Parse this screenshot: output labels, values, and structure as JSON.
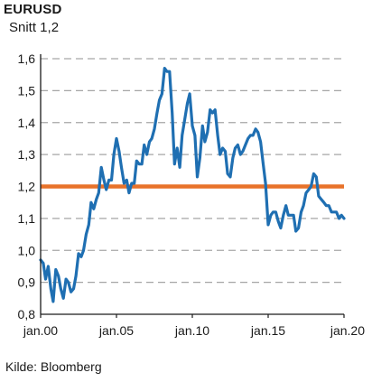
{
  "chart_data": {
    "type": "line",
    "title": "EURUSD",
    "subtitle": "Snitt 1,2",
    "source": "Kilde: Bloomberg",
    "xlabel": "",
    "ylabel": "",
    "x_range": [
      2000.0,
      2020.0
    ],
    "ylim": [
      0.8,
      1.6
    ],
    "y_ticks": [
      {
        "value": 1.6,
        "label": "1,6"
      },
      {
        "value": 1.5,
        "label": "1,5"
      },
      {
        "value": 1.4,
        "label": "1,4"
      },
      {
        "value": 1.3,
        "label": "1,3"
      },
      {
        "value": 1.2,
        "label": "1,2"
      },
      {
        "value": 1.1,
        "label": "1,1"
      },
      {
        "value": 1.0,
        "label": "1,0"
      },
      {
        "value": 0.9,
        "label": "0,9"
      },
      {
        "value": 0.8,
        "label": "0,8"
      }
    ],
    "x_ticks": [
      {
        "value": 2000,
        "label": "jan.00"
      },
      {
        "value": 2005,
        "label": "jan.05"
      },
      {
        "value": 2010,
        "label": "jan.10"
      },
      {
        "value": 2015,
        "label": "jan.15"
      },
      {
        "value": 2020,
        "label": "jan.20"
      }
    ],
    "grid": "horizontal-dashed",
    "series": [
      {
        "color": "#1f6fb2",
        "points": [
          [
            2000.0,
            0.97
          ],
          [
            2000.17,
            0.96
          ],
          [
            2000.33,
            0.91
          ],
          [
            2000.5,
            0.95
          ],
          [
            2000.67,
            0.88
          ],
          [
            2000.83,
            0.84
          ],
          [
            2001.0,
            0.94
          ],
          [
            2001.17,
            0.92
          ],
          [
            2001.33,
            0.88
          ],
          [
            2001.5,
            0.85
          ],
          [
            2001.67,
            0.91
          ],
          [
            2001.83,
            0.9
          ],
          [
            2002.0,
            0.87
          ],
          [
            2002.17,
            0.88
          ],
          [
            2002.33,
            0.92
          ],
          [
            2002.5,
            0.99
          ],
          [
            2002.67,
            0.98
          ],
          [
            2002.83,
            1.0
          ],
          [
            2003.0,
            1.05
          ],
          [
            2003.17,
            1.08
          ],
          [
            2003.33,
            1.15
          ],
          [
            2003.5,
            1.13
          ],
          [
            2003.67,
            1.16
          ],
          [
            2003.83,
            1.18
          ],
          [
            2004.0,
            1.26
          ],
          [
            2004.17,
            1.22
          ],
          [
            2004.33,
            1.19
          ],
          [
            2004.5,
            1.22
          ],
          [
            2004.67,
            1.22
          ],
          [
            2004.83,
            1.3
          ],
          [
            2005.0,
            1.35
          ],
          [
            2005.17,
            1.31
          ],
          [
            2005.33,
            1.26
          ],
          [
            2005.5,
            1.21
          ],
          [
            2005.67,
            1.22
          ],
          [
            2005.83,
            1.18
          ],
          [
            2006.0,
            1.21
          ],
          [
            2006.17,
            1.21
          ],
          [
            2006.33,
            1.28
          ],
          [
            2006.5,
            1.27
          ],
          [
            2006.67,
            1.27
          ],
          [
            2006.83,
            1.33
          ],
          [
            2007.0,
            1.3
          ],
          [
            2007.17,
            1.34
          ],
          [
            2007.33,
            1.35
          ],
          [
            2007.5,
            1.38
          ],
          [
            2007.67,
            1.43
          ],
          [
            2007.83,
            1.47
          ],
          [
            2008.0,
            1.49
          ],
          [
            2008.17,
            1.57
          ],
          [
            2008.33,
            1.56
          ],
          [
            2008.5,
            1.56
          ],
          [
            2008.67,
            1.43
          ],
          [
            2008.83,
            1.27
          ],
          [
            2009.0,
            1.32
          ],
          [
            2009.17,
            1.26
          ],
          [
            2009.33,
            1.36
          ],
          [
            2009.5,
            1.41
          ],
          [
            2009.67,
            1.46
          ],
          [
            2009.83,
            1.49
          ],
          [
            2010.0,
            1.39
          ],
          [
            2010.17,
            1.36
          ],
          [
            2010.33,
            1.23
          ],
          [
            2010.5,
            1.29
          ],
          [
            2010.67,
            1.39
          ],
          [
            2010.83,
            1.34
          ],
          [
            2011.0,
            1.37
          ],
          [
            2011.17,
            1.44
          ],
          [
            2011.33,
            1.43
          ],
          [
            2011.5,
            1.44
          ],
          [
            2011.67,
            1.36
          ],
          [
            2011.83,
            1.3
          ],
          [
            2012.0,
            1.32
          ],
          [
            2012.17,
            1.31
          ],
          [
            2012.33,
            1.24
          ],
          [
            2012.5,
            1.23
          ],
          [
            2012.67,
            1.29
          ],
          [
            2012.83,
            1.32
          ],
          [
            2013.0,
            1.33
          ],
          [
            2013.17,
            1.3
          ],
          [
            2013.33,
            1.31
          ],
          [
            2013.5,
            1.33
          ],
          [
            2013.67,
            1.35
          ],
          [
            2013.83,
            1.36
          ],
          [
            2014.0,
            1.36
          ],
          [
            2014.17,
            1.38
          ],
          [
            2014.33,
            1.37
          ],
          [
            2014.5,
            1.34
          ],
          [
            2014.67,
            1.27
          ],
          [
            2014.83,
            1.21
          ],
          [
            2015.0,
            1.08
          ],
          [
            2015.17,
            1.11
          ],
          [
            2015.33,
            1.12
          ],
          [
            2015.5,
            1.12
          ],
          [
            2015.67,
            1.09
          ],
          [
            2015.83,
            1.07
          ],
          [
            2016.0,
            1.11
          ],
          [
            2016.17,
            1.14
          ],
          [
            2016.33,
            1.11
          ],
          [
            2016.5,
            1.11
          ],
          [
            2016.67,
            1.11
          ],
          [
            2016.83,
            1.06
          ],
          [
            2017.0,
            1.07
          ],
          [
            2017.17,
            1.12
          ],
          [
            2017.33,
            1.14
          ],
          [
            2017.5,
            1.18
          ],
          [
            2017.67,
            1.19
          ],
          [
            2017.83,
            1.2
          ],
          [
            2018.0,
            1.24
          ],
          [
            2018.17,
            1.23
          ],
          [
            2018.33,
            1.17
          ],
          [
            2018.5,
            1.16
          ],
          [
            2018.67,
            1.15
          ],
          [
            2018.83,
            1.14
          ],
          [
            2019.0,
            1.14
          ],
          [
            2019.17,
            1.12
          ],
          [
            2019.33,
            1.12
          ],
          [
            2019.5,
            1.12
          ],
          [
            2019.67,
            1.1
          ],
          [
            2019.83,
            1.11
          ],
          [
            2020.0,
            1.1
          ]
        ]
      }
    ],
    "reference_line": {
      "value": 1.2,
      "label": "Snitt 1,2",
      "color": "#e8722a"
    },
    "axis_color": "#1a1a1a",
    "grid_color": "#a6a6a6"
  }
}
